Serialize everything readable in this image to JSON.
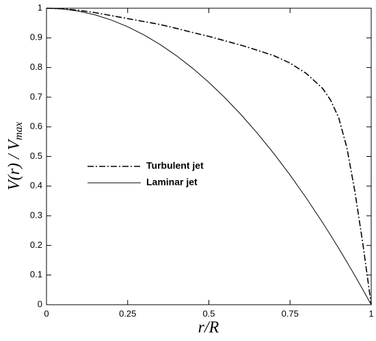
{
  "chart_data": {
    "type": "line",
    "xlabel": "r/R",
    "ylabel": "V(r) / V",
    "ylabel_subscript": "max",
    "x": [
      0,
      0.05,
      0.1,
      0.15,
      0.2,
      0.25,
      0.3,
      0.35,
      0.4,
      0.45,
      0.5,
      0.55,
      0.6,
      0.65,
      0.7,
      0.75,
      0.8,
      0.85,
      0.875,
      0.9,
      0.925,
      0.95,
      0.975,
      1
    ],
    "series": [
      {
        "name": "Turbulent jet",
        "color": "#000000",
        "dash": "dash-dot",
        "values": [
          1,
          0.998,
          0.993,
          0.985,
          0.975,
          0.965,
          0.955,
          0.945,
          0.932,
          0.918,
          0.905,
          0.89,
          0.875,
          0.858,
          0.84,
          0.815,
          0.78,
          0.73,
          0.69,
          0.63,
          0.53,
          0.38,
          0.2,
          0
        ]
      },
      {
        "name": "Laminar jet",
        "color": "#000000",
        "dash": "solid",
        "values": [
          1,
          0.9975,
          0.99,
          0.9775,
          0.96,
          0.9375,
          0.91,
          0.8775,
          0.84,
          0.7975,
          0.75,
          0.6975,
          0.64,
          0.5775,
          0.51,
          0.4375,
          0.36,
          0.2775,
          0.234375,
          0.19,
          0.144375,
          0.0975,
          0.049375,
          0
        ]
      }
    ],
    "xlim": [
      0,
      1
    ],
    "xticks": [
      0,
      0.25,
      0.5,
      0.75,
      1
    ],
    "ylim": [
      0,
      1
    ],
    "yticks": [
      0,
      0.1,
      0.2,
      0.3,
      0.4,
      0.5,
      0.6,
      0.7,
      0.8,
      0.9,
      1
    ],
    "grid": false,
    "legend": "left"
  }
}
